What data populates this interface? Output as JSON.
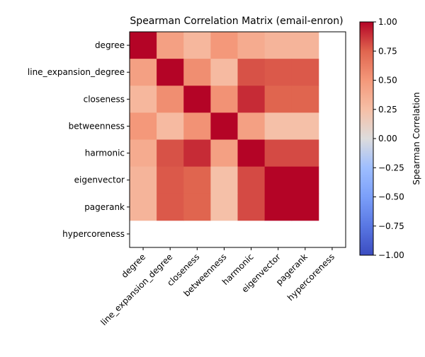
{
  "chart_data": {
    "type": "heatmap",
    "title": "Spearman Correlation Matrix (email-enron)",
    "labels": [
      "degree",
      "line_expansion_degree",
      "closeness",
      "betweenness",
      "harmonic",
      "eigenvector",
      "pagerank",
      "hypercoreness"
    ],
    "matrix": [
      [
        1.0,
        0.45,
        0.3,
        0.5,
        0.38,
        0.32,
        0.32,
        null
      ],
      [
        0.45,
        1.0,
        0.55,
        0.28,
        0.8,
        0.78,
        0.78,
        null
      ],
      [
        0.3,
        0.55,
        1.0,
        0.53,
        0.9,
        0.75,
        0.75,
        null
      ],
      [
        0.5,
        0.28,
        0.53,
        1.0,
        0.45,
        0.24,
        0.24,
        null
      ],
      [
        0.38,
        0.8,
        0.9,
        0.45,
        1.0,
        0.82,
        0.82,
        null
      ],
      [
        0.32,
        0.78,
        0.75,
        0.24,
        0.82,
        1.0,
        1.0,
        null
      ],
      [
        0.32,
        0.78,
        0.75,
        0.24,
        0.82,
        1.0,
        1.0,
        null
      ],
      [
        null,
        null,
        null,
        null,
        null,
        null,
        null,
        null
      ]
    ],
    "colormap": "coolwarm",
    "vmin": -1.0,
    "vmax": 1.0,
    "colorbar": {
      "label": "Spearman Correlation",
      "ticks": [
        1.0,
        0.75,
        0.5,
        0.25,
        0.0,
        -0.25,
        -0.5,
        -0.75,
        -1.0
      ],
      "tick_labels": [
        "1.00",
        "0.75",
        "0.50",
        "0.25",
        "0.00",
        "−0.25",
        "−0.50",
        "−0.75",
        "−1.00"
      ]
    },
    "xtick_rotation": 45
  }
}
